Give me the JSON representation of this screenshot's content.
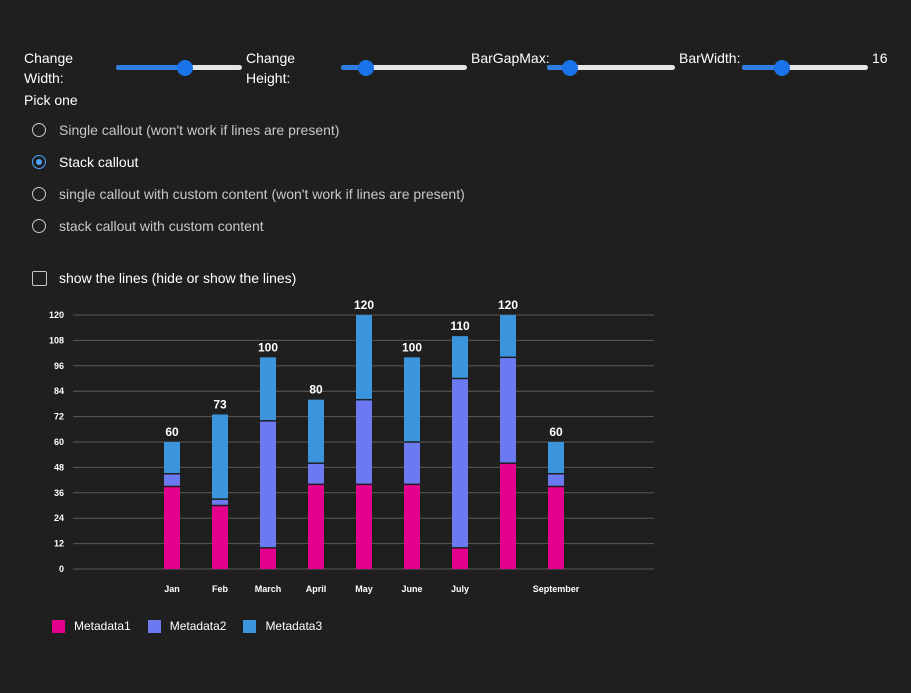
{
  "controls": {
    "change_width_label": "Change Width:",
    "change_height_label": "Change Height:",
    "bar_gap_max_label": "BarGapMax:",
    "bar_width_label": "BarWidth:",
    "bar_width_value": "16",
    "change_width_level": 0.55,
    "change_height_level": 0.2,
    "bar_gap_max_level": 0.18,
    "bar_width_level": 0.32
  },
  "pick_one_label": "Pick one",
  "radio_options": [
    {
      "label": "Single callout (won't work if lines are present)",
      "selected": false
    },
    {
      "label": "Stack callout",
      "selected": true
    },
    {
      "label": "single callout with custom content (won't work if lines are present)",
      "selected": false
    },
    {
      "label": "stack callout with custom content",
      "selected": false
    }
  ],
  "show_lines_label": "show the lines (hide or show the lines)",
  "chart_data": {
    "type": "bar",
    "stacked": true,
    "categories": [
      "Jan",
      "Feb",
      "March",
      "April",
      "May",
      "June",
      "July",
      "",
      "September"
    ],
    "series": [
      {
        "name": "Metadata1",
        "color": "#e3008c",
        "values": [
          39,
          30,
          10,
          40,
          40,
          40,
          10,
          50,
          39
        ]
      },
      {
        "name": "Metadata2",
        "color": "#6b7af0",
        "values": [
          6,
          3,
          60,
          10,
          40,
          20,
          80,
          50,
          6
        ]
      },
      {
        "name": "Metadata3",
        "color": "#3b95dd",
        "values": [
          15,
          40,
          30,
          30,
          40,
          40,
          20,
          20,
          15
        ]
      }
    ],
    "totals": [
      "60",
      "73",
      "100",
      "80",
      "120",
      "100",
      "110",
      "120",
      "60"
    ],
    "y_ticks": [
      "0",
      "12",
      "24",
      "36",
      "48",
      "60",
      "72",
      "84",
      "96",
      "108",
      "120"
    ],
    "ylim": [
      0,
      120
    ],
    "grid": true,
    "legend_position": "bottom-left"
  }
}
